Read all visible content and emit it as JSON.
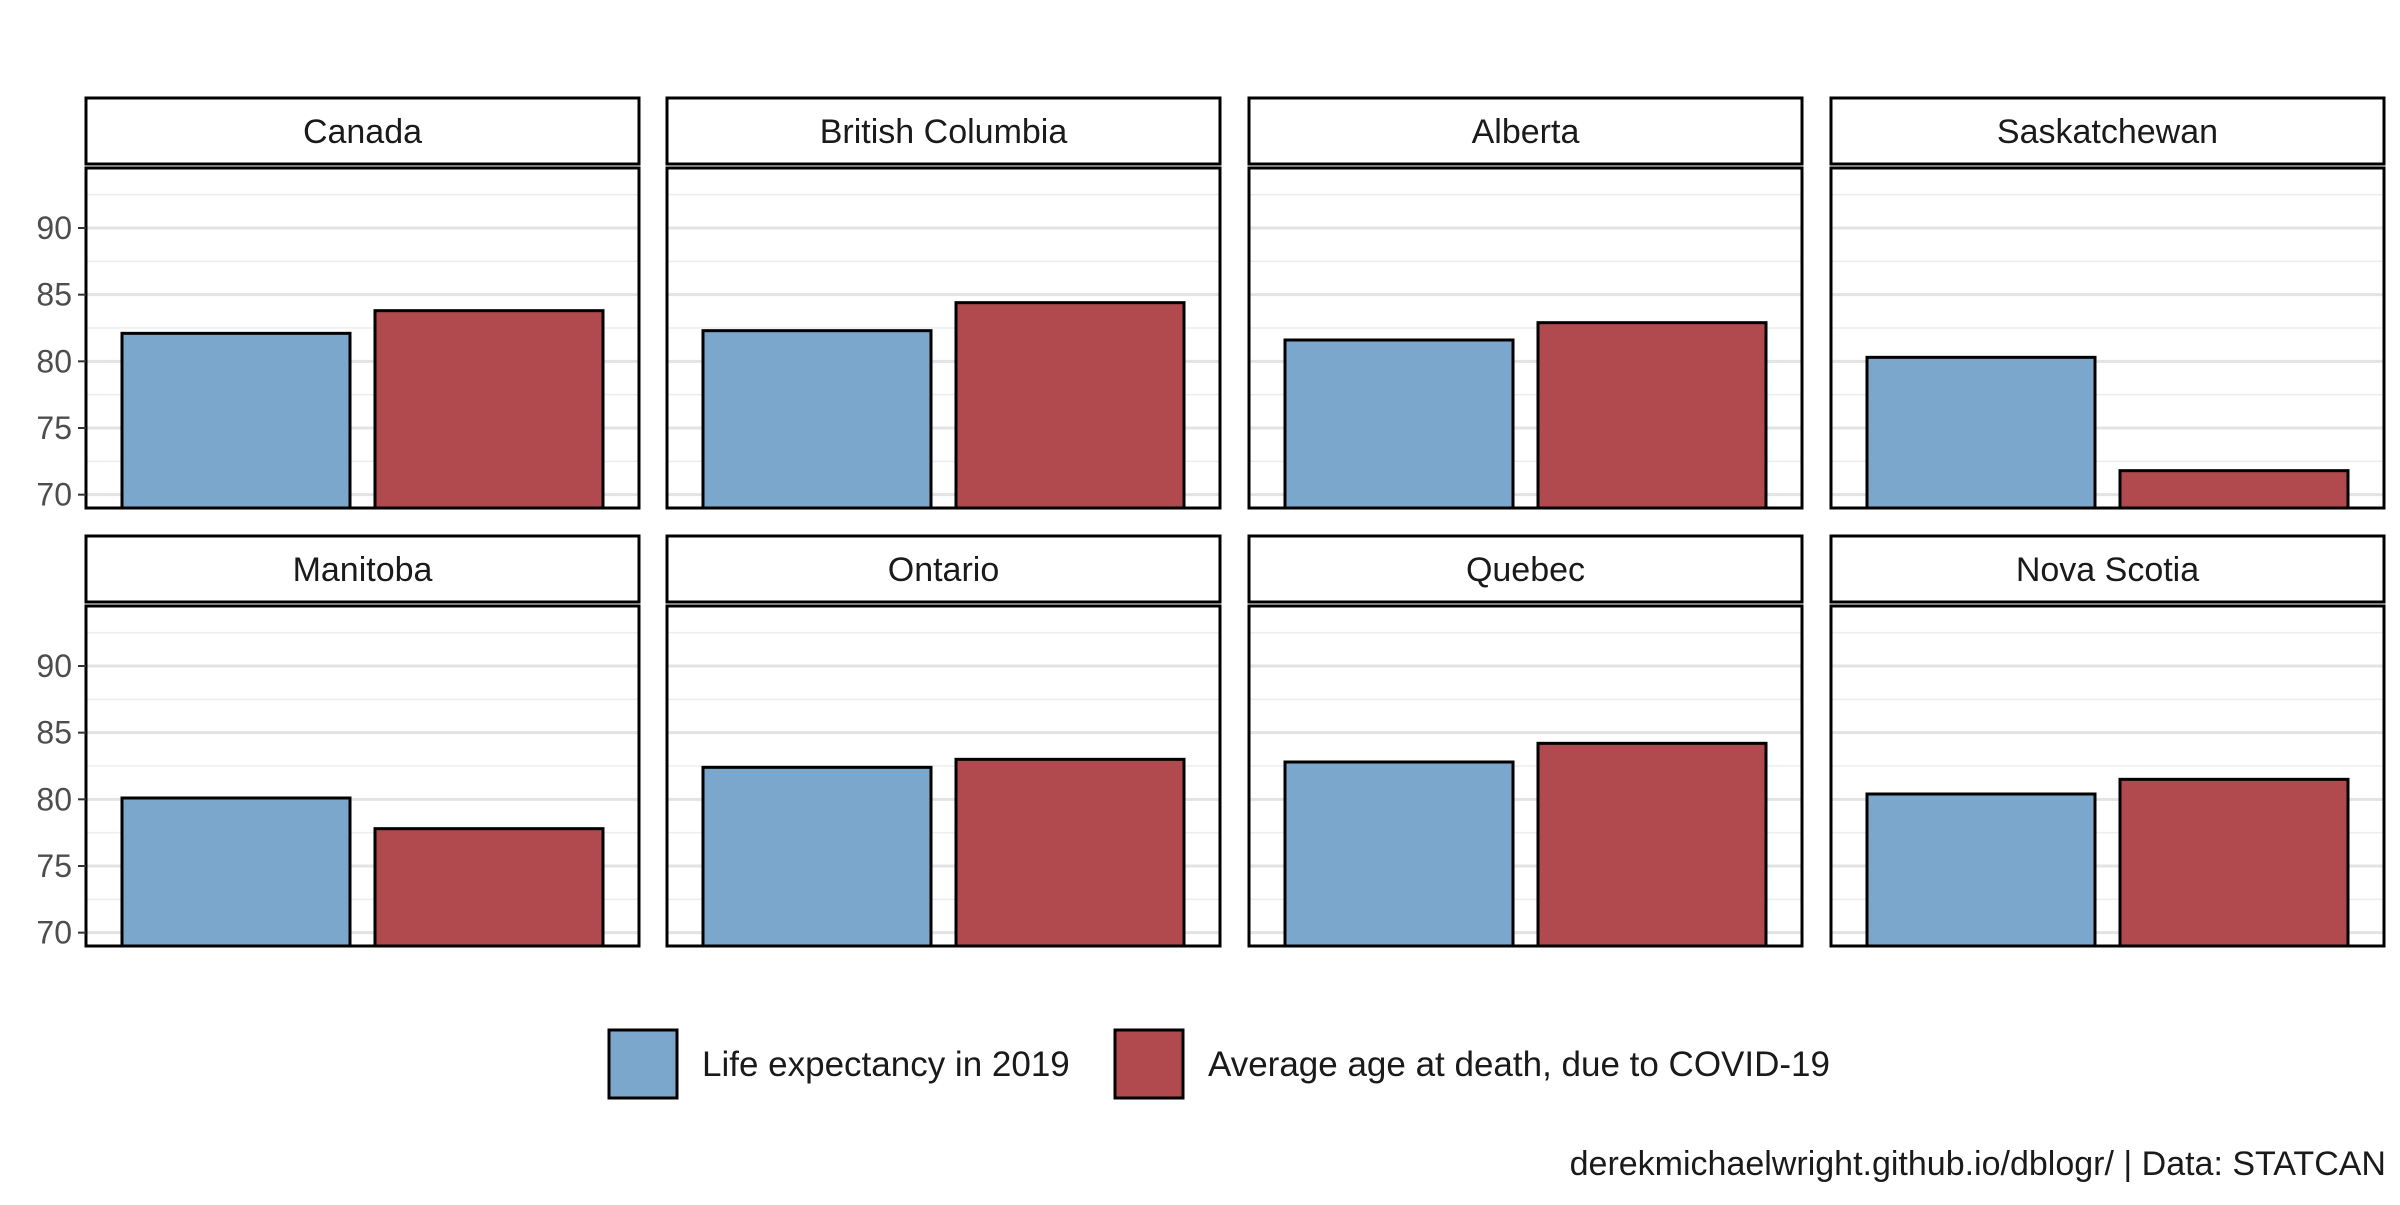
{
  "chart_data": {
    "type": "bar",
    "layout": "facets 4x2",
    "ylim": [
      69,
      94.5
    ],
    "yticks": [
      70,
      75,
      80,
      85,
      90
    ],
    "grid": true,
    "legend_position": "bottom",
    "series": [
      {
        "key": "life",
        "name": "Life expectancy in 2019",
        "color": "#7ba7cc"
      },
      {
        "key": "covid",
        "name": "Average age at death, due to COVID-19",
        "color": "#b04a4e"
      }
    ],
    "facets": [
      {
        "name": "Canada",
        "values": [
          82.1,
          83.8
        ]
      },
      {
        "name": "British Columbia",
        "values": [
          82.3,
          84.4
        ]
      },
      {
        "name": "Alberta",
        "values": [
          81.6,
          82.9
        ]
      },
      {
        "name": "Saskatchewan",
        "values": [
          80.3,
          71.8
        ]
      },
      {
        "name": "Manitoba",
        "values": [
          80.1,
          77.8
        ]
      },
      {
        "name": "Ontario",
        "values": [
          82.4,
          83.0
        ]
      },
      {
        "name": "Quebec",
        "values": [
          82.8,
          84.2
        ]
      },
      {
        "name": "Nova Scotia",
        "values": [
          80.4,
          81.5
        ]
      }
    ],
    "caption": "derekmichaelwright.github.io/dblogr/ | Data: STATCAN"
  }
}
